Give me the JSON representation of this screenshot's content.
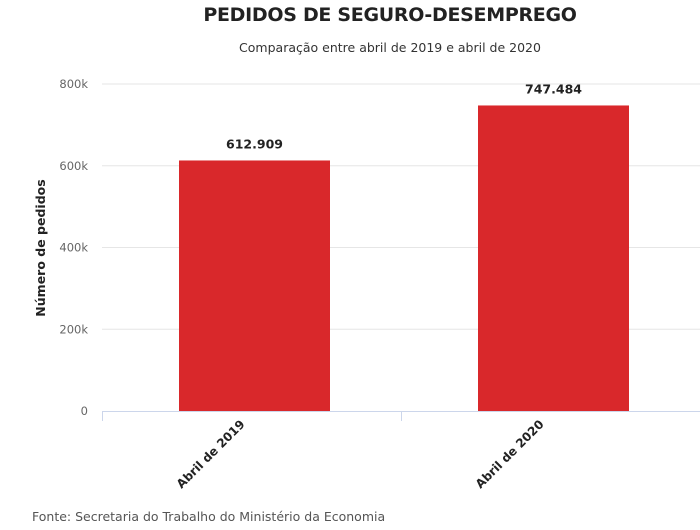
{
  "chart_data": {
    "type": "bar",
    "title": "PEDIDOS DE SEGURO-DESEMPREGO",
    "subtitle": "Comparação entre abril de 2019 e abril de 2020",
    "xlabel": "",
    "ylabel": "Número de pedidos",
    "categories": [
      "Abril de 2019",
      "Abril de 2020"
    ],
    "values": [
      612909,
      747484
    ],
    "data_labels": [
      "612.909",
      "747.484"
    ],
    "ylim": [
      0,
      800000
    ],
    "yticks": [
      0,
      200000,
      400000,
      600000,
      800000
    ],
    "ytick_labels": [
      "0",
      "200k",
      "400k",
      "600k",
      "800k"
    ],
    "grid": true,
    "bar_color": "#d9282b",
    "source": "Fonte: Secretaria do Trabalho do Ministério da Economia"
  }
}
